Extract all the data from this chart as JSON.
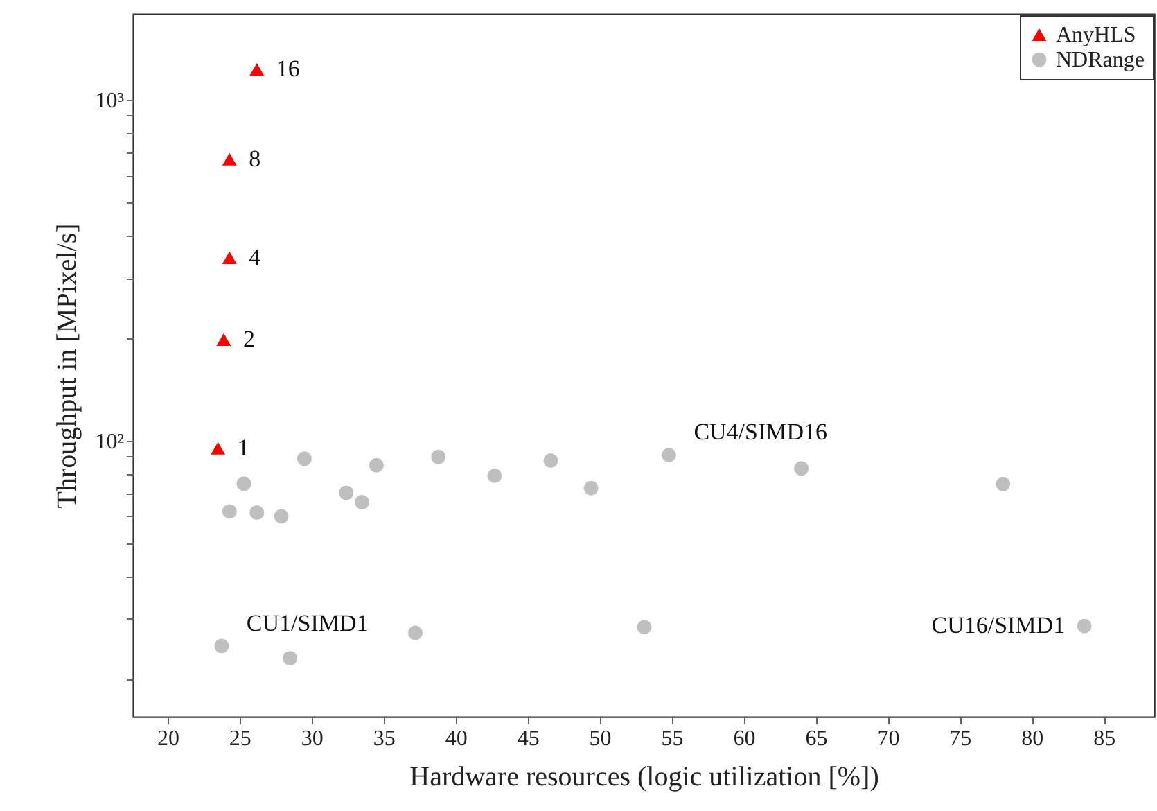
{
  "chart_data": {
    "type": "scatter",
    "xlabel": "Hardware resources (logic utilization [%])",
    "ylabel": "Throughput in [MPixel/s]",
    "log": "y",
    "grid": false,
    "legend": "top right",
    "xlim": [
      17.6,
      88.5
    ],
    "xticks": [
      20,
      25,
      30,
      35,
      40,
      45,
      50,
      55,
      60,
      65,
      70,
      75,
      80,
      85
    ],
    "ylim": [
      15.5,
      1786
    ],
    "yticks": [
      {
        "value": 20,
        "label": null
      },
      {
        "value": 30,
        "label": null
      },
      {
        "value": 40,
        "label": null
      },
      {
        "value": 50,
        "label": null
      },
      {
        "value": 60,
        "label": null
      },
      {
        "value": 70,
        "label": null
      },
      {
        "value": 80,
        "label": null
      },
      {
        "value": 90,
        "label": null
      },
      {
        "value": 100,
        "label": "10²"
      },
      {
        "value": 200,
        "label": null
      },
      {
        "value": 300,
        "label": null
      },
      {
        "value": 400,
        "label": null
      },
      {
        "value": 500,
        "label": null
      },
      {
        "value": 600,
        "label": null
      },
      {
        "value": 700,
        "label": null
      },
      {
        "value": 800,
        "label": null
      },
      {
        "value": 900,
        "label": null
      },
      {
        "value": 1000,
        "label": "10³"
      }
    ],
    "series": [
      {
        "name": "AnyHLS",
        "color": "#ff0000",
        "marker": "triangle",
        "x": [
          23.5,
          23.9,
          24.3,
          24.3,
          26.2
        ],
        "values": [
          95,
          198,
          344,
          669,
          1227
        ]
      },
      {
        "name": "NDRange",
        "color": "#bfbfbf",
        "marker": "circle",
        "x": [
          25.3,
          24.3,
          26.2,
          27.9,
          29.5,
          32.4,
          33.5,
          34.5,
          38.8,
          42.7,
          46.6,
          49.4,
          54.8,
          23.75,
          28.5,
          37.2,
          53.1,
          64.0,
          78.0,
          83.65
        ],
        "values": [
          74.8,
          62,
          61.5,
          60,
          88.5,
          70.3,
          66,
          84.7,
          89.6,
          78.9,
          87.4,
          72.6,
          90.8,
          25,
          23,
          27.3,
          28.4,
          82.9,
          74.6,
          28.6
        ]
      }
    ],
    "annotations": [
      {
        "text": "1",
        "x": 23.5,
        "y": 95
      },
      {
        "text": "2",
        "x": 23.9,
        "y": 198
      },
      {
        "text": "4",
        "x": 24.3,
        "y": 344
      },
      {
        "text": "8",
        "x": 24.3,
        "y": 669
      },
      {
        "text": "16",
        "x": 26.2,
        "y": 1227
      },
      {
        "text": "CU1/SIMD1",
        "x": 23.75,
        "y": 25
      },
      {
        "text": "CU4/SIMD16",
        "x": 54.8,
        "y": 90.8
      },
      {
        "text": "CU16/SIMD1",
        "x": 83.65,
        "y": 28.6
      }
    ]
  }
}
